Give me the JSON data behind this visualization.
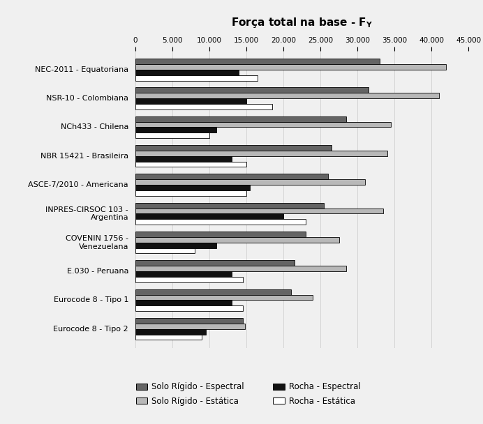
{
  "title": "Força total na base - F_Y",
  "categories": [
    "NEC-2011 - Equatoriana",
    "NSR-10 - Colombiana",
    "NCh433 - Chilena",
    "NBR 15421 - Brasileira",
    "ASCE-7/2010 - Americana",
    "INPRES-CIRSOC 103 -\nArgentina",
    "COVENIN 1756 -\nVenezuelana",
    "E.030 - Peruana",
    "Eurocode 8 - Tipo 1",
    "Eurocode 8 - Tipo 2"
  ],
  "series_order": [
    "Solo Rígido - Espectral",
    "Solo Rígido - Estática",
    "Rocha - Espectral",
    "Rocha - Estática"
  ],
  "series": {
    "Solo Rígido - Espectral": {
      "color": "#646464",
      "values": [
        33000,
        31500,
        28500,
        26500,
        26000,
        25500,
        23000,
        21500,
        21000,
        14500
      ]
    },
    "Solo Rígido - Estática": {
      "color": "#b8b8b8",
      "values": [
        42000,
        41000,
        34500,
        34000,
        31000,
        33500,
        27500,
        28500,
        24000,
        14800
      ]
    },
    "Rocha - Espectral": {
      "color": "#111111",
      "values": [
        14000,
        15000,
        11000,
        13000,
        15500,
        20000,
        11000,
        13000,
        13000,
        9500
      ]
    },
    "Rocha - Estática": {
      "color": "#ffffff",
      "values": [
        16500,
        18500,
        10000,
        15000,
        15000,
        23000,
        8000,
        14500,
        14500,
        9000
      ]
    }
  },
  "xlim": [
    0,
    45000
  ],
  "xticks": [
    0,
    5000,
    10000,
    15000,
    20000,
    25000,
    30000,
    35000,
    40000,
    45000
  ],
  "xtick_labels": [
    "0",
    "5.000",
    "10.000",
    "15.000",
    "20.000",
    "25.000",
    "30.000",
    "35.000",
    "40.000",
    "45.000"
  ],
  "background_color": "#f0f0f0",
  "bar_edge_color": "#000000",
  "bar_height": 0.19,
  "legend_items_col1": [
    {
      "label": "Solo Rígido - Espectral",
      "color": "#646464"
    },
    {
      "label": "Rocha - Espectral",
      "color": "#111111"
    }
  ],
  "legend_items_col2": [
    {
      "label": "Solo Rígido - Estática",
      "color": "#b8b8b8"
    },
    {
      "label": "Rocha - Estática",
      "color": "#ffffff"
    }
  ]
}
